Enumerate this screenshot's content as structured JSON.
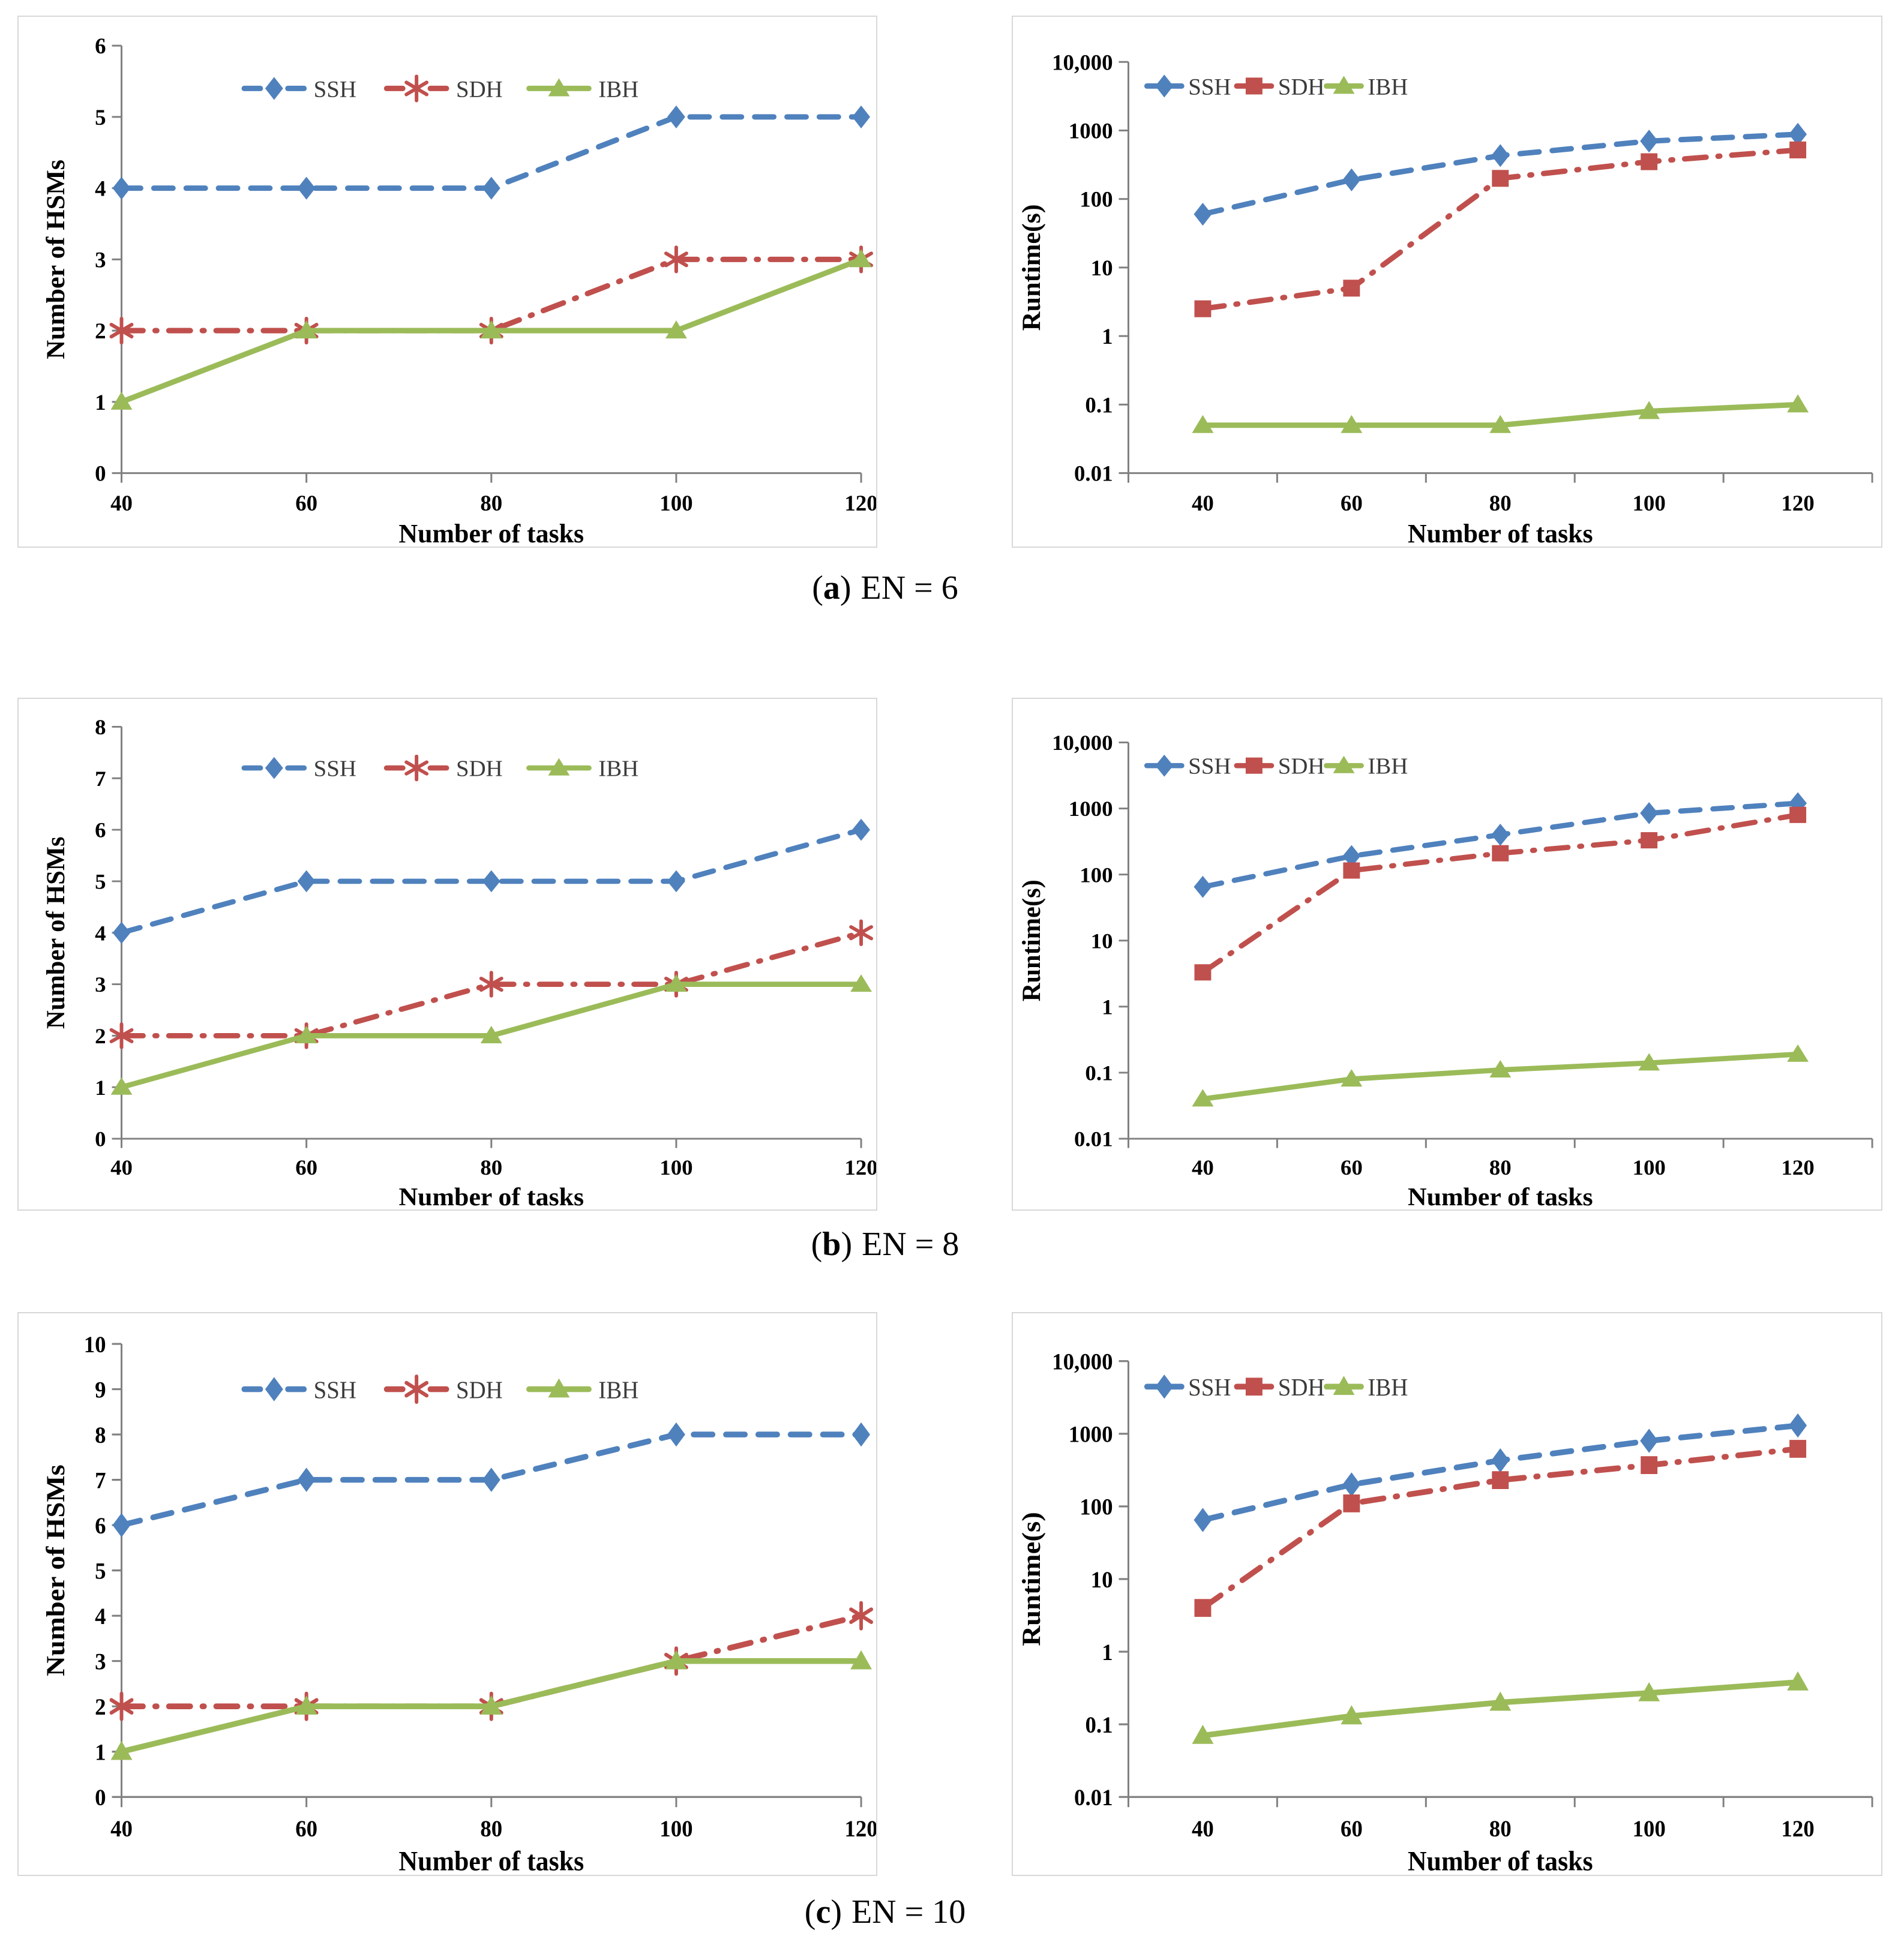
{
  "colors": {
    "ssh": "#4F81BD",
    "sdh": "#C0504D",
    "ibh": "#9BBB59",
    "axis": "#808080",
    "panel_border": "#D8D8D8",
    "text": "#000000",
    "background": "#FFFFFF"
  },
  "captions": [
    {
      "open": "(",
      "letter": "a",
      "close": ")",
      "text": "EN = 6"
    },
    {
      "open": "(",
      "letter": "b",
      "close": ")",
      "text": "EN = 8"
    },
    {
      "open": "(",
      "letter": "c",
      "close": ")",
      "text": "EN = 10"
    }
  ],
  "chart_data": [
    {
      "id": "hsm-en6",
      "type": "line",
      "panel_side": "left",
      "title": "",
      "xlabel": "Number of tasks",
      "ylabel": "Number of HSMs",
      "x": [
        40,
        60,
        80,
        100,
        120
      ],
      "xtick_labels": [
        "40",
        "60",
        "80",
        "100",
        "120"
      ],
      "yscale": "linear",
      "ylim": [
        0,
        6
      ],
      "ytick_step": 1,
      "grid": false,
      "legend_position": "top-inside",
      "series": [
        {
          "name": "SSH",
          "color_key": "ssh",
          "marker": "diamond",
          "line": "dashed",
          "values": [
            4,
            4,
            4,
            5,
            5
          ]
        },
        {
          "name": "SDH",
          "color_key": "sdh",
          "marker": "asterisk",
          "line": "dashdot",
          "values": [
            2,
            2,
            2,
            3,
            3
          ]
        },
        {
          "name": "IBH",
          "color_key": "ibh",
          "marker": "triangle",
          "line": "solid",
          "values": [
            1,
            2,
            2,
            2,
            3
          ]
        }
      ]
    },
    {
      "id": "runtime-en6",
      "type": "line",
      "panel_side": "right",
      "title": "",
      "xlabel": "Number of tasks",
      "ylabel": "Runtime(s)",
      "x": [
        40,
        60,
        80,
        100,
        120
      ],
      "xtick_labels": [
        "40",
        "60",
        "80",
        "100",
        "120"
      ],
      "yscale": "log",
      "ylim": [
        0.01,
        10000
      ],
      "ytick_labels": [
        "0.01",
        "0.1",
        "1",
        "10",
        "100",
        "1000",
        "10,000"
      ],
      "grid": false,
      "legend_position": "top-inside",
      "series": [
        {
          "name": "SSH",
          "color_key": "ssh",
          "marker": "diamond",
          "line": "dashed",
          "values": [
            60,
            190,
            430,
            700,
            880
          ]
        },
        {
          "name": "SDH",
          "color_key": "sdh",
          "marker": "square",
          "line": "dashdot",
          "values": [
            2.5,
            5,
            200,
            350,
            520
          ]
        },
        {
          "name": "IBH",
          "color_key": "ibh",
          "marker": "triangle",
          "line": "solid",
          "values": [
            0.05,
            0.05,
            0.05,
            0.08,
            0.1
          ]
        }
      ]
    },
    {
      "id": "hsm-en8",
      "type": "line",
      "panel_side": "left",
      "title": "",
      "xlabel": "Number of tasks",
      "ylabel": "Number of HSMs",
      "x": [
        40,
        60,
        80,
        100,
        120
      ],
      "xtick_labels": [
        "40",
        "60",
        "80",
        "100",
        "120"
      ],
      "yscale": "linear",
      "ylim": [
        0,
        8
      ],
      "ytick_step": 1,
      "grid": false,
      "legend_position": "top-inside",
      "series": [
        {
          "name": "SSH",
          "color_key": "ssh",
          "marker": "diamond",
          "line": "dashed",
          "values": [
            4,
            5,
            5,
            5,
            6
          ]
        },
        {
          "name": "SDH",
          "color_key": "sdh",
          "marker": "asterisk",
          "line": "dashdot",
          "values": [
            2,
            2,
            3,
            3,
            4
          ]
        },
        {
          "name": "IBH",
          "color_key": "ibh",
          "marker": "triangle",
          "line": "solid",
          "values": [
            1,
            2,
            2,
            3,
            3
          ]
        }
      ]
    },
    {
      "id": "runtime-en8",
      "type": "line",
      "panel_side": "right",
      "title": "",
      "xlabel": "Number of tasks",
      "ylabel": "Runtime(s)",
      "x": [
        40,
        60,
        80,
        100,
        120
      ],
      "xtick_labels": [
        "40",
        "60",
        "80",
        "100",
        "120"
      ],
      "yscale": "log",
      "ylim": [
        0.01,
        10000
      ],
      "ytick_labels": [
        "0.01",
        "0.1",
        "1",
        "10",
        "100",
        "1000",
        "10,000"
      ],
      "grid": false,
      "legend_position": "top-inside",
      "series": [
        {
          "name": "SSH",
          "color_key": "ssh",
          "marker": "diamond",
          "line": "dashed",
          "values": [
            65,
            190,
            400,
            850,
            1200
          ]
        },
        {
          "name": "SDH",
          "color_key": "sdh",
          "marker": "square",
          "line": "dashdot",
          "values": [
            3.3,
            115,
            210,
            330,
            800
          ]
        },
        {
          "name": "IBH",
          "color_key": "ibh",
          "marker": "triangle",
          "line": "solid",
          "values": [
            0.04,
            0.08,
            0.11,
            0.14,
            0.19
          ]
        }
      ]
    },
    {
      "id": "hsm-en10",
      "type": "line",
      "panel_side": "left",
      "title": "",
      "xlabel": "Number of tasks",
      "ylabel": "Number of HSMs",
      "x": [
        40,
        60,
        80,
        100,
        120
      ],
      "xtick_labels": [
        "40",
        "60",
        "80",
        "100",
        "120"
      ],
      "yscale": "linear",
      "ylim": [
        0,
        10
      ],
      "ytick_step": 1,
      "grid": false,
      "legend_position": "top-inside",
      "series": [
        {
          "name": "SSH",
          "color_key": "ssh",
          "marker": "diamond",
          "line": "dashed",
          "values": [
            6,
            7,
            7,
            8,
            8
          ]
        },
        {
          "name": "SDH",
          "color_key": "sdh",
          "marker": "asterisk",
          "line": "dashdot",
          "values": [
            2,
            2,
            2,
            3,
            4
          ]
        },
        {
          "name": "IBH",
          "color_key": "ibh",
          "marker": "triangle",
          "line": "solid",
          "values": [
            1,
            2,
            2,
            3,
            3
          ]
        }
      ]
    },
    {
      "id": "runtime-en10",
      "type": "line",
      "panel_side": "right",
      "title": "",
      "xlabel": "Number of tasks",
      "ylabel": "Runtime(s)",
      "x": [
        40,
        60,
        80,
        100,
        120
      ],
      "xtick_labels": [
        "40",
        "60",
        "80",
        "100",
        "120"
      ],
      "yscale": "log",
      "ylim": [
        0.01,
        10000
      ],
      "ytick_labels": [
        "0.01",
        "0.1",
        "1",
        "10",
        "100",
        "1000",
        "10,000"
      ],
      "grid": false,
      "legend_position": "top-inside",
      "series": [
        {
          "name": "SSH",
          "color_key": "ssh",
          "marker": "diamond",
          "line": "dashed",
          "values": [
            65,
            200,
            430,
            800,
            1300
          ]
        },
        {
          "name": "SDH",
          "color_key": "sdh",
          "marker": "square",
          "line": "dashdot",
          "values": [
            4,
            110,
            230,
            370,
            620
          ]
        },
        {
          "name": "IBH",
          "color_key": "ibh",
          "marker": "triangle",
          "line": "solid",
          "values": [
            0.07,
            0.13,
            0.2,
            0.27,
            0.38
          ]
        }
      ]
    }
  ]
}
